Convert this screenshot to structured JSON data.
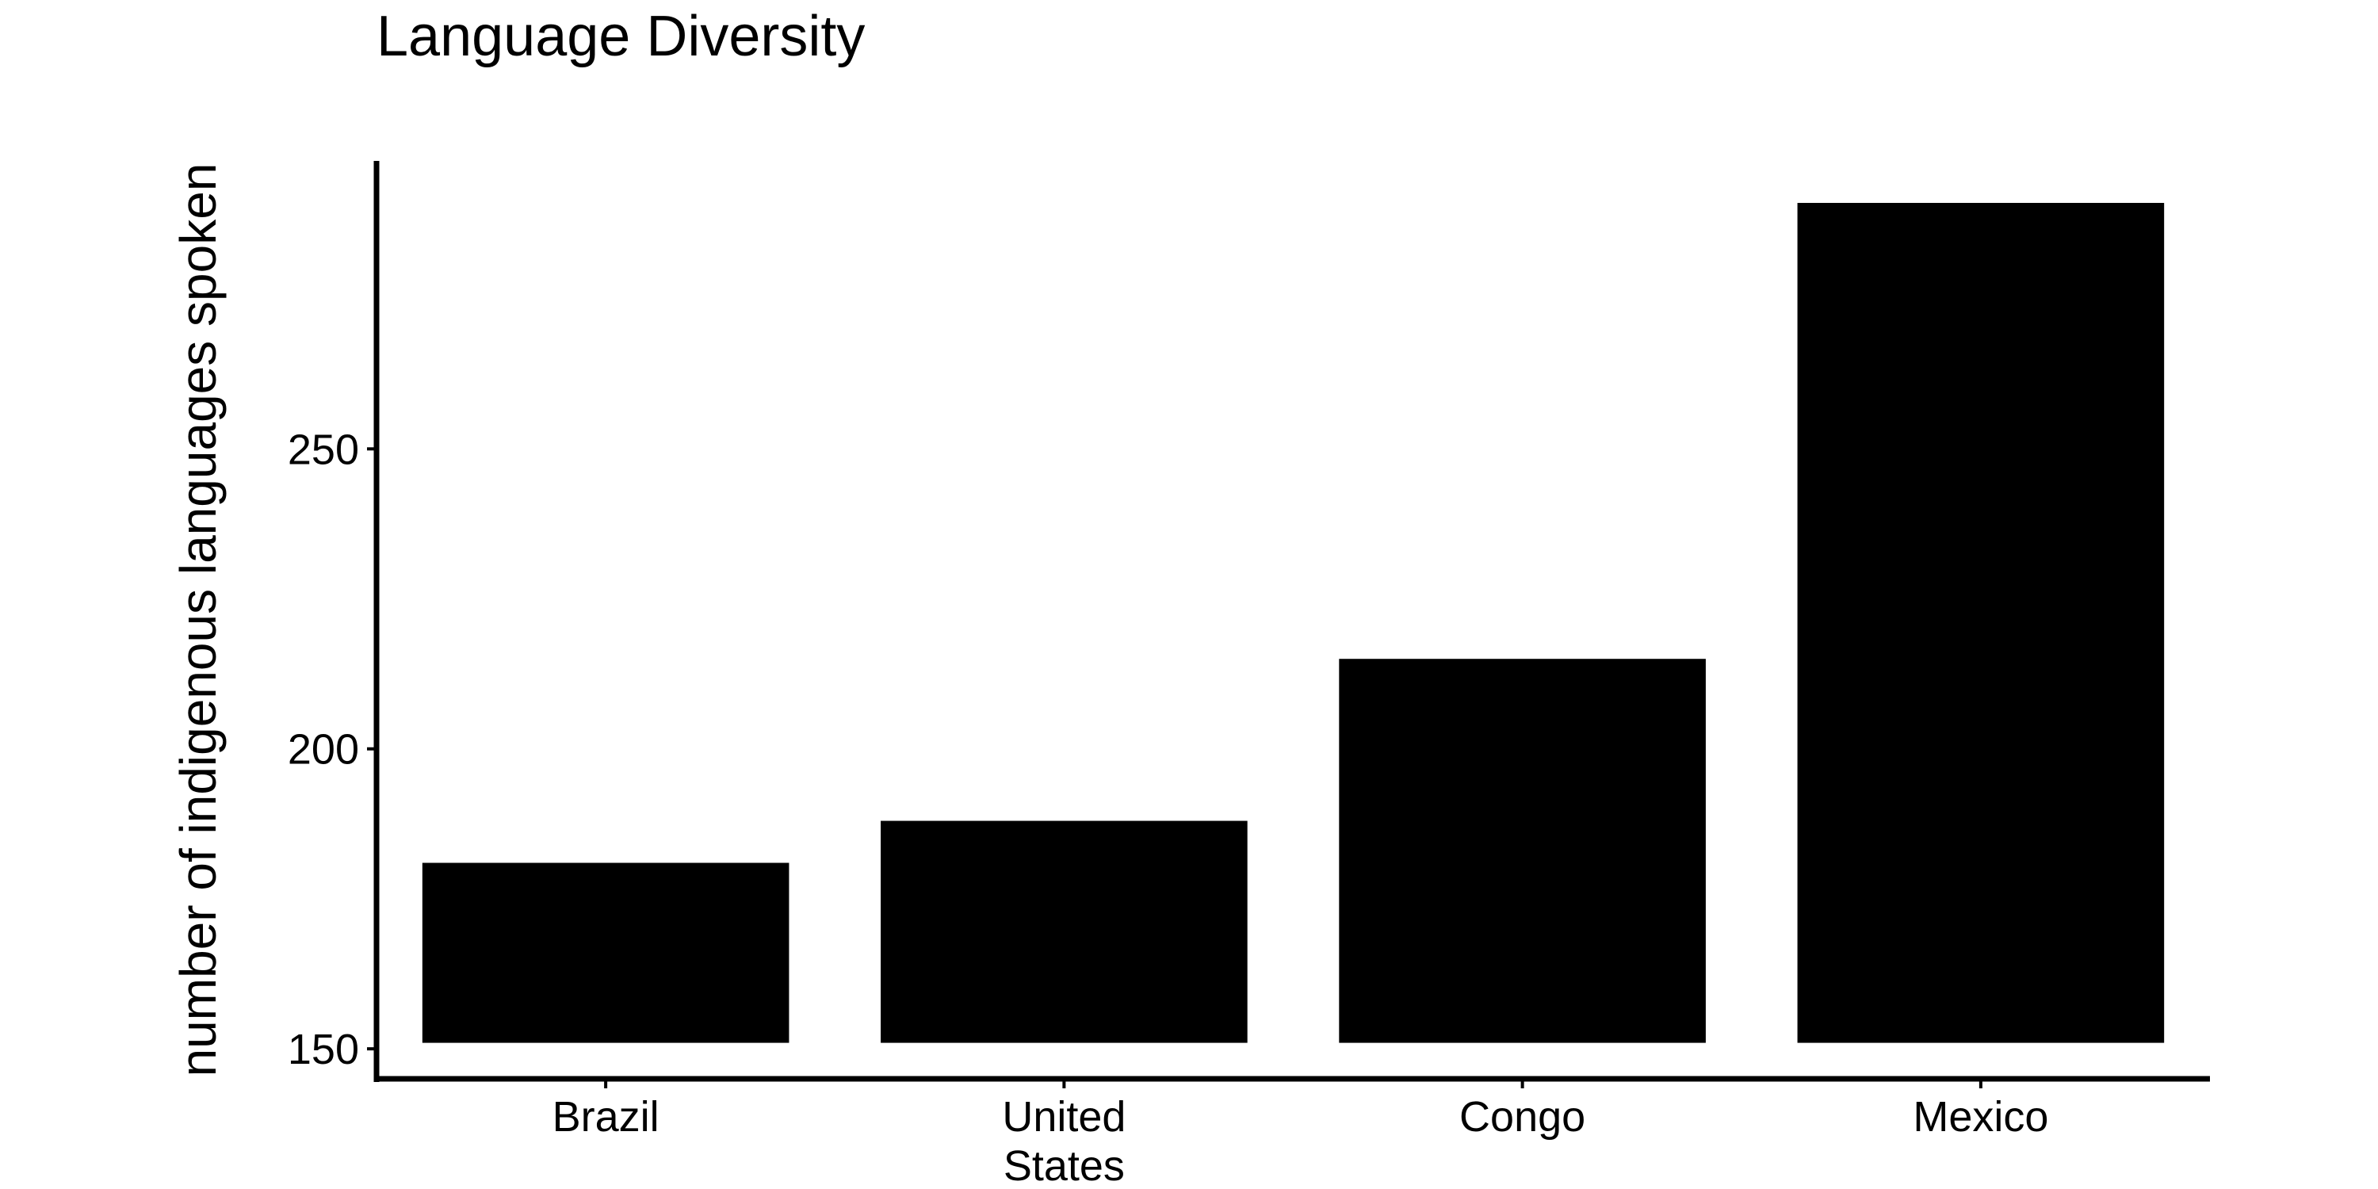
{
  "chart_data": {
    "type": "bar",
    "title": "Language Diversity",
    "xlabel": "",
    "ylabel": "number of indigenous languages spoken",
    "categories": [
      "Brazil",
      "United States",
      "Congo",
      "Mexico"
    ],
    "category_label_lines": [
      [
        "Brazil"
      ],
      [
        "United",
        "States"
      ],
      [
        "Congo"
      ],
      [
        "Mexico"
      ]
    ],
    "values": [
      181,
      188,
      215,
      291
    ],
    "baseline": 151,
    "ylim": [
      145,
      298
    ],
    "yticks": [
      150,
      200,
      250
    ],
    "bar_color": "#000000",
    "grid": false,
    "legend": "none"
  }
}
